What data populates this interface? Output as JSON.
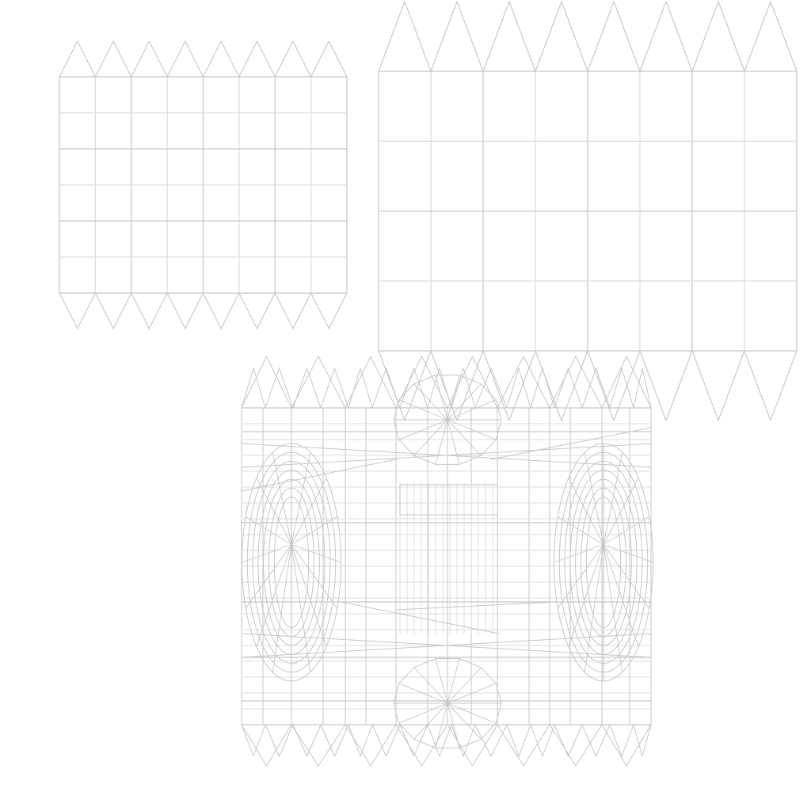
{
  "colors": {
    "background": "#ffffff",
    "wire": "#c6c6c6",
    "wire_light": "#dcdcdc"
  },
  "content": {
    "description_visible_text": ""
  }
}
